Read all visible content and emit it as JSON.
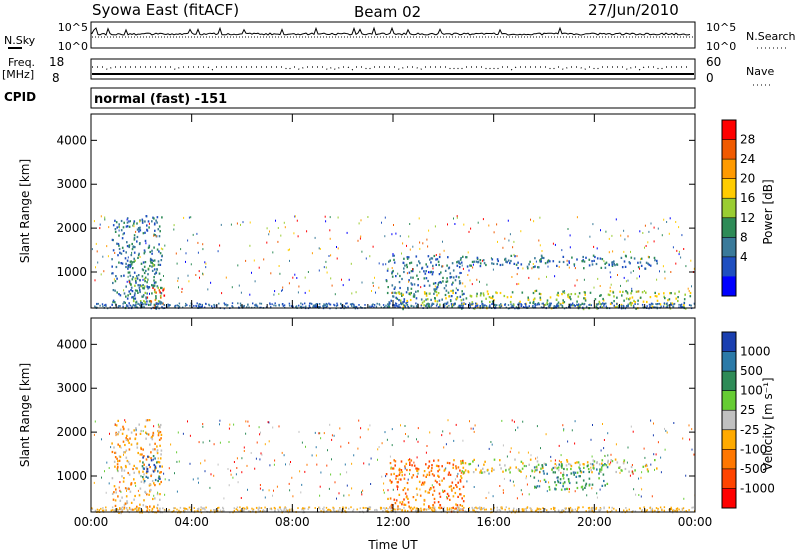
{
  "header": {
    "station": "Syowa East (fitACF)",
    "beam": "Beam 02",
    "date": "27/Jun/2010"
  },
  "nsky_panel": {
    "left_label": "N.Sky",
    "left_ticks": [
      "10^5",
      "10^0"
    ],
    "right_label": "N.Search",
    "right_ticks": [
      "10^5",
      "10^0"
    ]
  },
  "freq_panel": {
    "left_label_line1": "Freq.",
    "left_label_line2": "[MHz]",
    "left_ticks": [
      "18",
      "8"
    ],
    "right_label": "Nave",
    "right_ticks": [
      "60",
      "0"
    ]
  },
  "cpid_panel": {
    "label": "CPID",
    "text": "normal (fast) -151"
  },
  "power_colorbar": {
    "label": "Power [dB]",
    "ticks": [
      "28",
      "24",
      "20",
      "16",
      "12",
      "8",
      "4"
    ],
    "colors": [
      "#ff0000",
      "#f05a00",
      "#ff9a00",
      "#ffcc00",
      "#9acd32",
      "#2e8b57",
      "#3a7a9a",
      "#1f4fc0",
      "#0000ff"
    ]
  },
  "velocity_colorbar": {
    "label": "Velocity [m s⁻¹]",
    "ticks": [
      "1000",
      "500",
      "100",
      "25",
      "-25",
      "-100",
      "-500",
      "-1000"
    ],
    "colors": [
      "#1a3fb0",
      "#2b7aa8",
      "#2e8b57",
      "#66cc33",
      "#c0c0c0",
      "#ffaa00",
      "#ff7700",
      "#ff4400",
      "#ff0000"
    ]
  },
  "chart_data": [
    {
      "type": "heatmap",
      "name": "Power",
      "ylabel": "Slant Range [km]",
      "ylim": [
        180,
        4600
      ],
      "yticks": [
        1000,
        2000,
        3000,
        4000
      ],
      "xlim": [
        0,
        24
      ],
      "xticks": [
        0,
        4,
        8,
        12,
        16,
        20,
        24
      ],
      "xtick_labels": [
        "00:00",
        "04:00",
        "08:00",
        "12:00",
        "16:00",
        "20:00",
        "00:00"
      ],
      "echo_regions": [
        {
          "t": [
            2.2,
            2.9
          ],
          "range": [
            200,
            700
          ],
          "level": "28"
        },
        {
          "t": [
            1.5,
            2.8
          ],
          "range": [
            300,
            1300
          ],
          "level": "12"
        },
        {
          "t": [
            0.8,
            2.8
          ],
          "range": [
            180,
            2300
          ],
          "level": "8"
        },
        {
          "t": [
            11.7,
            14.8
          ],
          "range": [
            200,
            1400
          ],
          "level": "8"
        },
        {
          "t": [
            14.5,
            22.5
          ],
          "range": [
            1100,
            1400
          ],
          "level": "8"
        },
        {
          "t": [
            12.0,
            23.8
          ],
          "range": [
            180,
            600
          ],
          "level": "16"
        }
      ]
    },
    {
      "type": "heatmap",
      "name": "Velocity",
      "xlabel": "Time UT",
      "ylabel": "Slant Range [km]",
      "ylim": [
        180,
        4600
      ],
      "yticks": [
        1000,
        2000,
        3000,
        4000
      ],
      "xlim": [
        0,
        24
      ],
      "xticks": [
        0,
        4,
        8,
        12,
        16,
        20,
        24
      ],
      "xtick_labels": [
        "00:00",
        "04:00",
        "08:00",
        "12:00",
        "16:00",
        "20:00",
        "00:00"
      ],
      "echo_regions": [
        {
          "t": [
            0.8,
            2.8
          ],
          "range": [
            180,
            2300
          ],
          "level": "-100"
        },
        {
          "t": [
            2.0,
            2.8
          ],
          "range": [
            900,
            1500
          ],
          "level": "500"
        },
        {
          "t": [
            11.7,
            14.8
          ],
          "range": [
            200,
            1400
          ],
          "level": "-500"
        },
        {
          "t": [
            14.5,
            22.5
          ],
          "range": [
            1100,
            1400
          ],
          "level": "-25"
        },
        {
          "t": [
            17.5,
            20.5
          ],
          "range": [
            700,
            1300
          ],
          "level": "100"
        }
      ]
    }
  ]
}
